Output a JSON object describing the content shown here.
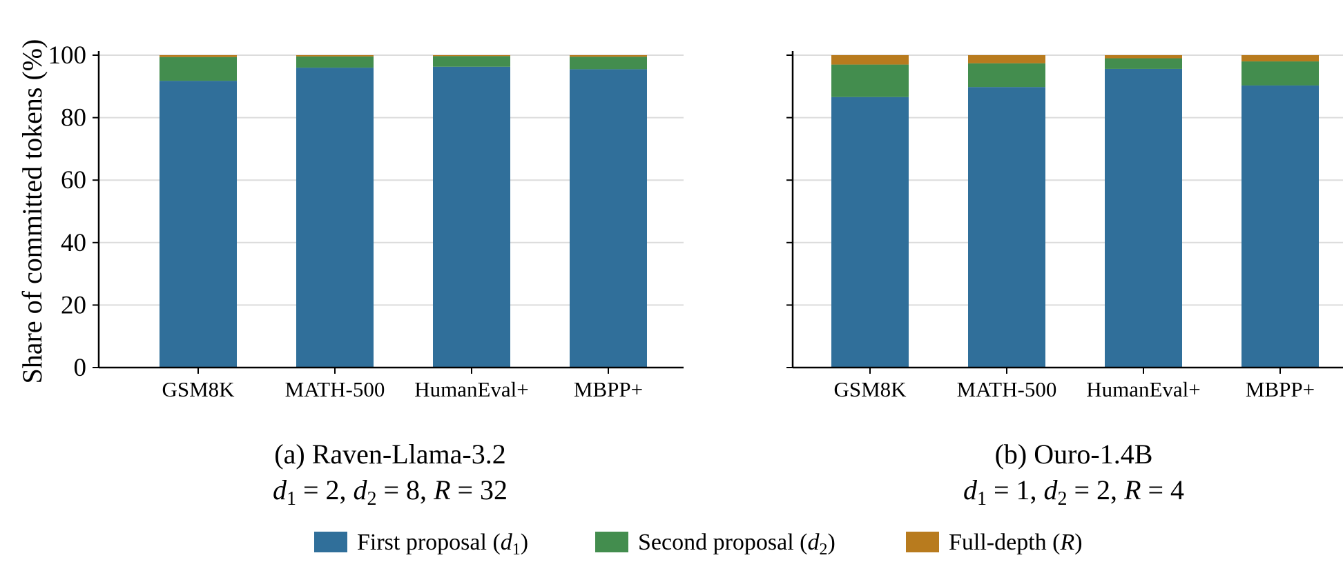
{
  "chart_data": [
    {
      "type": "bar",
      "stacked": true,
      "title": "(a) Raven-Llama-3.2",
      "subtitle_parts": [
        "d",
        "1",
        " = 2,  ",
        "d",
        "2",
        " = 8,  ",
        "R",
        " = 32"
      ],
      "ylabel": "Share of committed tokens (%)",
      "ylim": [
        0,
        100
      ],
      "yticks": [
        "0",
        "20",
        "40",
        "60",
        "80",
        "100"
      ],
      "grid": "horizontal",
      "categories": [
        "GSM8K",
        "MATH-500",
        "HumanEval+",
        "MBPP+"
      ],
      "series": [
        {
          "name": "First proposal (d1)",
          "color": "#306f9a",
          "values": [
            91.8,
            96.0,
            96.3,
            95.5
          ]
        },
        {
          "name": "Second proposal (d2)",
          "color": "#438d4e",
          "values": [
            7.6,
            3.6,
            3.4,
            4.0
          ]
        },
        {
          "name": "Full-depth (R)",
          "color": "#b87b1e",
          "values": [
            0.6,
            0.4,
            0.3,
            0.5
          ]
        }
      ]
    },
    {
      "type": "bar",
      "stacked": true,
      "title": "(b) Ouro-1.4B",
      "subtitle_parts": [
        "d",
        "1",
        " = 1,  ",
        "d",
        "2",
        " = 2,  ",
        "R",
        " = 4"
      ],
      "ylim": [
        0,
        100
      ],
      "grid": "horizontal",
      "categories": [
        "GSM8K",
        "MATH-500",
        "HumanEval+",
        "MBPP+"
      ],
      "series": [
        {
          "name": "First proposal (d1)",
          "color": "#306f9a",
          "values": [
            86.6,
            89.8,
            95.6,
            90.3
          ]
        },
        {
          "name": "Second proposal (d2)",
          "color": "#438d4e",
          "values": [
            10.4,
            7.6,
            3.4,
            7.7
          ]
        },
        {
          "name": "Full-depth (R)",
          "color": "#b87b1e",
          "values": [
            3.0,
            2.6,
            1.0,
            2.0
          ]
        }
      ]
    }
  ],
  "legend": {
    "position": "bottom-center",
    "items": [
      {
        "label": "First proposal (",
        "var": "d",
        "sub": "1",
        "close": ")",
        "color": "#306f9a"
      },
      {
        "label": "Second proposal (",
        "var": "d",
        "sub": "2",
        "close": ")",
        "color": "#438d4e"
      },
      {
        "label": "Full-depth (",
        "var": "R",
        "sub": "",
        "close": ")",
        "color": "#b87b1e"
      }
    ]
  }
}
